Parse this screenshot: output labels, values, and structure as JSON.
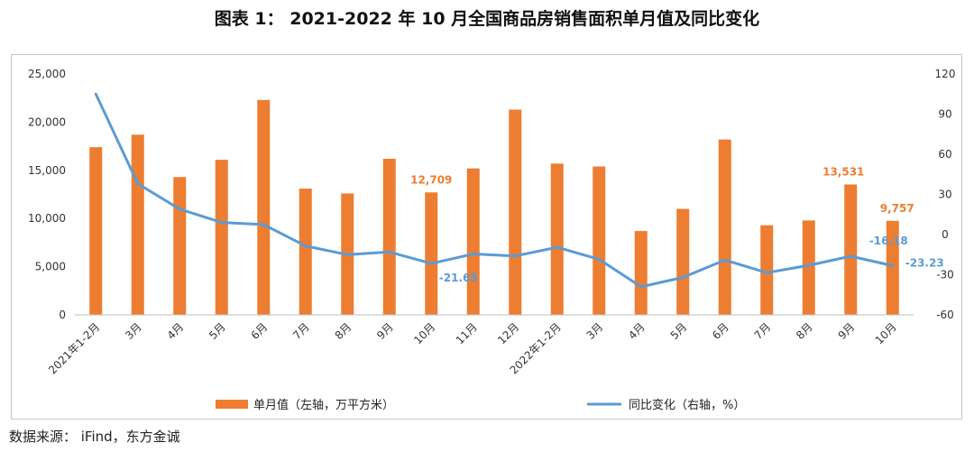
{
  "title": "图表 1：  2021-2022 年 10 月全国商品房销售面积单月值及同比变化",
  "source": "数据来源：   iFind，东方金诚",
  "colors": {
    "bar": "#ED7D31",
    "line": "#5B9BD5",
    "bar_label": "#ED7D31",
    "line_label": "#5B9BD5"
  },
  "chart_data": {
    "type": "bar",
    "categories": [
      "2021年1-2月",
      "3月",
      "4月",
      "5月",
      "6月",
      "7月",
      "8月",
      "9月",
      "10月",
      "11月",
      "12月",
      "2022年1-2月",
      "3月",
      "4月",
      "5月",
      "6月",
      "7月",
      "8月",
      "9月",
      "10月"
    ],
    "series": [
      {
        "name": "单月值（左轴，万平方米）",
        "type": "bar",
        "axis": "left",
        "values": [
          17400,
          18700,
          14300,
          16100,
          22300,
          13100,
          12600,
          16200,
          12709,
          15200,
          21300,
          15700,
          15400,
          8700,
          11000,
          18200,
          9300,
          9800,
          13531,
          9757
        ]
      },
      {
        "name": "同比变化（右轴，%）",
        "type": "line",
        "axis": "right",
        "values": [
          105,
          38,
          19,
          9,
          7.5,
          -8.5,
          -15,
          -13,
          -21.65,
          -14.5,
          -16,
          -9.5,
          -18.5,
          -39,
          -32,
          -19,
          -28.5,
          -23,
          -16.18,
          -23.23
        ]
      }
    ],
    "left_axis": {
      "ylim": [
        0,
        25000
      ],
      "ticks": [
        "0",
        "5,000",
        "10,000",
        "15,000",
        "20,000",
        "25,000"
      ]
    },
    "right_axis": {
      "ylim": [
        -60,
        120
      ],
      "ticks": [
        "-60",
        "-30",
        "0",
        "30",
        "60",
        "90",
        "120"
      ]
    },
    "bar_labels": [
      {
        "index": 8,
        "text": "12,709"
      },
      {
        "index": 18,
        "text": "13,531"
      },
      {
        "index": 19,
        "text": "9,757"
      }
    ],
    "line_labels": [
      {
        "index": 8,
        "text": "-21.65"
      },
      {
        "index": 18,
        "text": "-16.18"
      },
      {
        "index": 19,
        "text": "-23.23"
      }
    ],
    "legend": {
      "position": "bottom",
      "items": [
        "单月值（左轴，万平方米）",
        "同比变化（右轴，%）"
      ]
    },
    "grid": false
  }
}
